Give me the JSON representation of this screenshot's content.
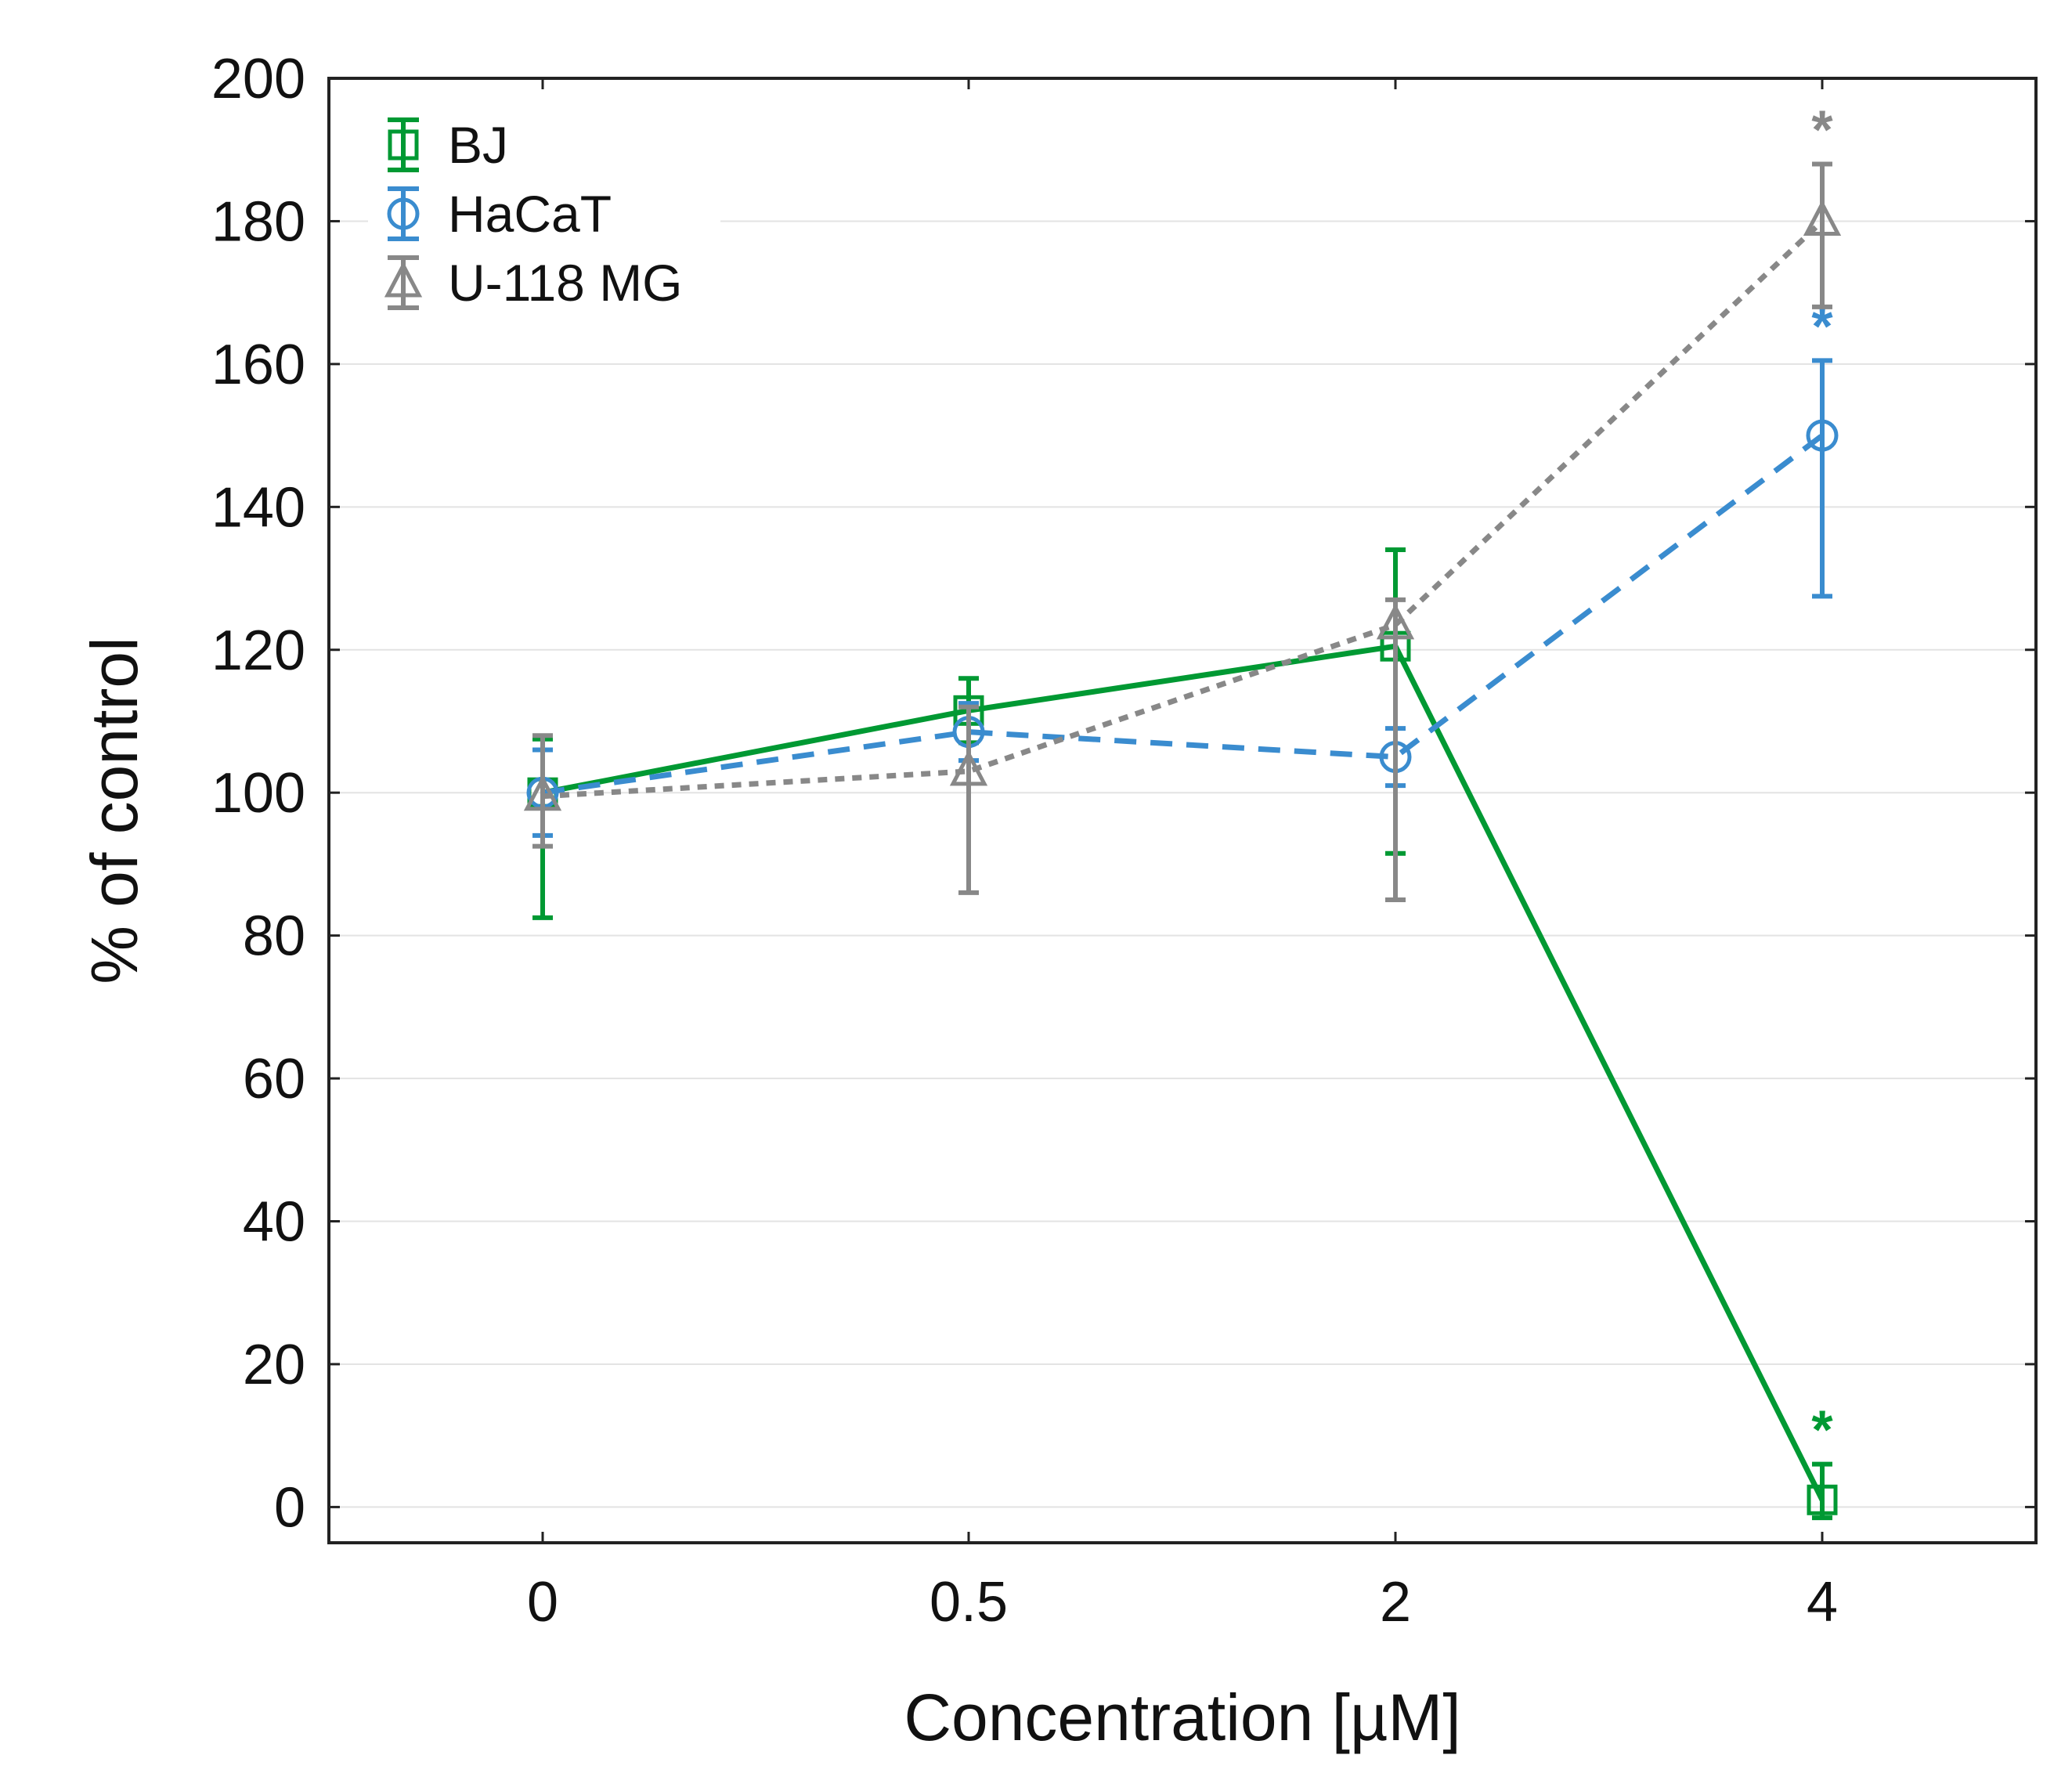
{
  "chart_data": {
    "type": "line",
    "xlabel": "Concentration [µM]",
    "ylabel": "% of control",
    "categories": [
      "0",
      "0.5",
      "2",
      "4"
    ],
    "ylim": [
      -5,
      200
    ],
    "yticks": [
      0,
      20,
      40,
      60,
      80,
      100,
      120,
      140,
      160,
      180,
      200
    ],
    "grid": "horizontal",
    "legend_position": "top-left",
    "series": [
      {
        "name": "BJ",
        "color": "#009933",
        "marker": "square",
        "line_style": "solid",
        "values": [
          100,
          111.5,
          120.5,
          1
        ],
        "err_low": [
          82.5,
          107,
          91.5,
          -1.5
        ],
        "err_high": [
          107.5,
          116,
          134,
          6
        ],
        "significance": [
          "",
          "",
          "",
          "*"
        ]
      },
      {
        "name": "HaCaT",
        "color": "#3a8ccf",
        "marker": "circle",
        "line_style": "dashed",
        "values": [
          100,
          108.5,
          105,
          150
        ],
        "err_low": [
          94,
          104.5,
          101,
          127.5
        ],
        "err_high": [
          106,
          112.5,
          109,
          160.5
        ],
        "significance": [
          "",
          "",
          "",
          "*"
        ]
      },
      {
        "name": "U-118 MG",
        "color": "#888888",
        "marker": "triangle",
        "line_style": "dotted",
        "values": [
          99.5,
          103,
          123.5,
          180
        ],
        "err_low": [
          92.5,
          86,
          85,
          168
        ],
        "err_high": [
          108,
          112,
          127,
          188
        ],
        "significance": [
          "",
          "",
          "",
          "*"
        ]
      }
    ]
  }
}
